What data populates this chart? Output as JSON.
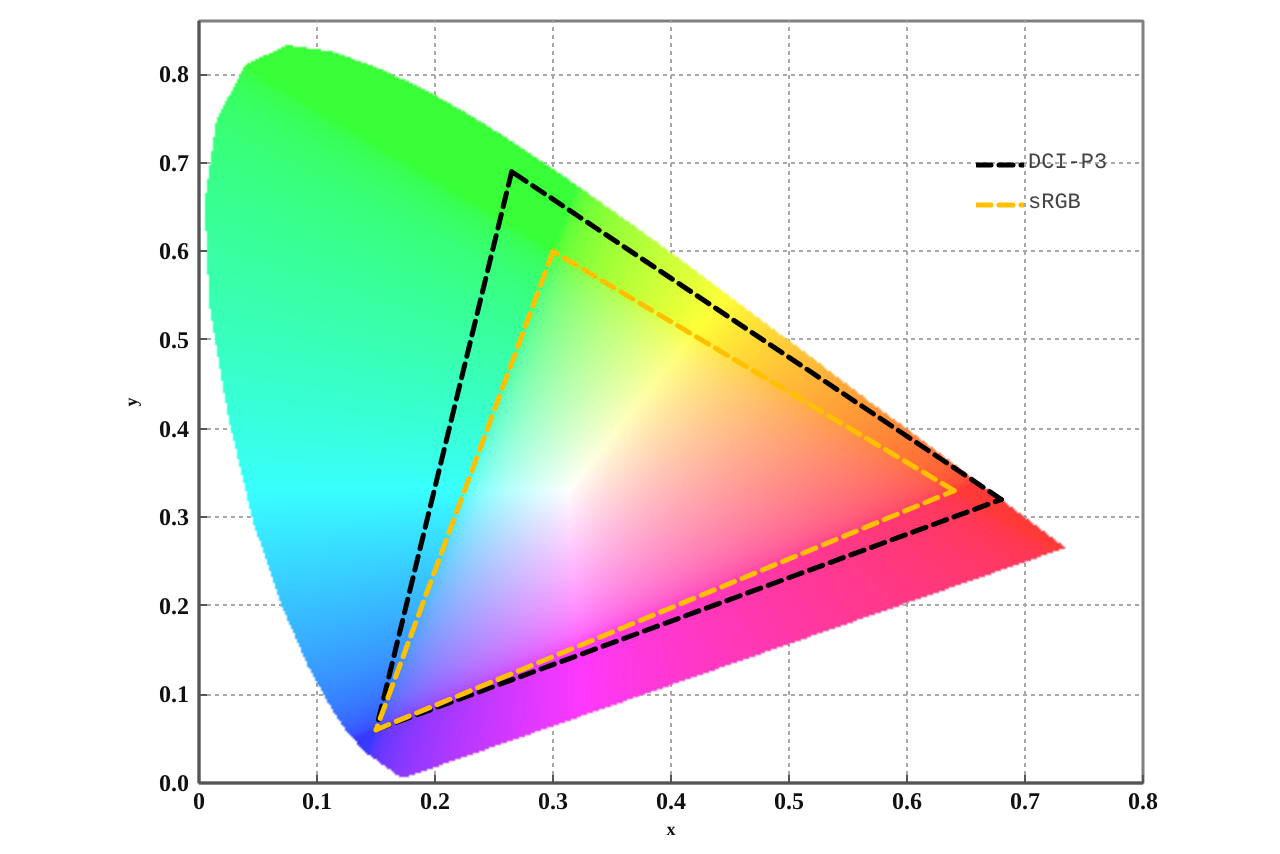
{
  "chart_data": {
    "type": "line",
    "xlabel": "x",
    "ylabel": "y",
    "xlim": [
      0,
      0.8
    ],
    "ylim": [
      0,
      0.86
    ],
    "xticks": [
      0,
      0.1,
      0.2,
      0.3,
      0.4,
      0.5,
      0.6,
      0.7,
      0.8
    ],
    "yticks": [
      {
        "value": 0,
        "label": "0.0"
      },
      0.1,
      0.2,
      0.3,
      0.4,
      0.5,
      0.6,
      0.7,
      0.8
    ],
    "grid": true,
    "legend": "top right",
    "line_style": "dashed",
    "series": [
      {
        "type": "area",
        "color": "#ffffff",
        "x": [
          0.174,
          0.171,
          0.164,
          0.157,
          0.144,
          0.136,
          0.124,
          0.11,
          0.091,
          0.069,
          0.045,
          0.024,
          0.008,
          0.004,
          0.014,
          0.039,
          0.074,
          0.114,
          0.155,
          0.193,
          0.23,
          0.266,
          0.302,
          0.337,
          0.373,
          0.409,
          0.444,
          0.479,
          0.513,
          0.545,
          0.575,
          0.603,
          0.627,
          0.666,
          0.692,
          0.719,
          0.735
        ],
        "values": [
          0.005,
          0.005,
          0.011,
          0.018,
          0.03,
          0.04,
          0.058,
          0.087,
          0.133,
          0.201,
          0.295,
          0.413,
          0.538,
          0.655,
          0.75,
          0.812,
          0.834,
          0.826,
          0.806,
          0.782,
          0.754,
          0.724,
          0.692,
          0.659,
          0.625,
          0.59,
          0.555,
          0.52,
          0.487,
          0.454,
          0.424,
          0.397,
          0.373,
          0.334,
          0.308,
          0.281,
          0.265
        ]
      },
      {
        "name": "DCI-P3",
        "color": "#000000",
        "x": [
          0.68,
          0.265
        ],
        "values": [
          0.32,
          0.69
        ]
      },
      {
        "color": "#000000",
        "x": [
          0.265,
          0.15
        ],
        "values": [
          0.69,
          0.06
        ]
      },
      {
        "color": "#000000",
        "x": [
          0.15,
          0.68
        ],
        "values": [
          0.06,
          0.32
        ]
      },
      {
        "name": "sRGB",
        "color": "#ffc000",
        "x": [
          0.64,
          0.3
        ],
        "values": [
          0.33,
          0.6
        ]
      },
      {
        "color": "#ffc000",
        "x": [
          0.3,
          0.15
        ],
        "values": [
          0.6,
          0.06
        ]
      },
      {
        "color": "#ffc000",
        "x": [
          0.15,
          0.64
        ],
        "values": [
          0.06,
          0.33
        ]
      }
    ]
  }
}
